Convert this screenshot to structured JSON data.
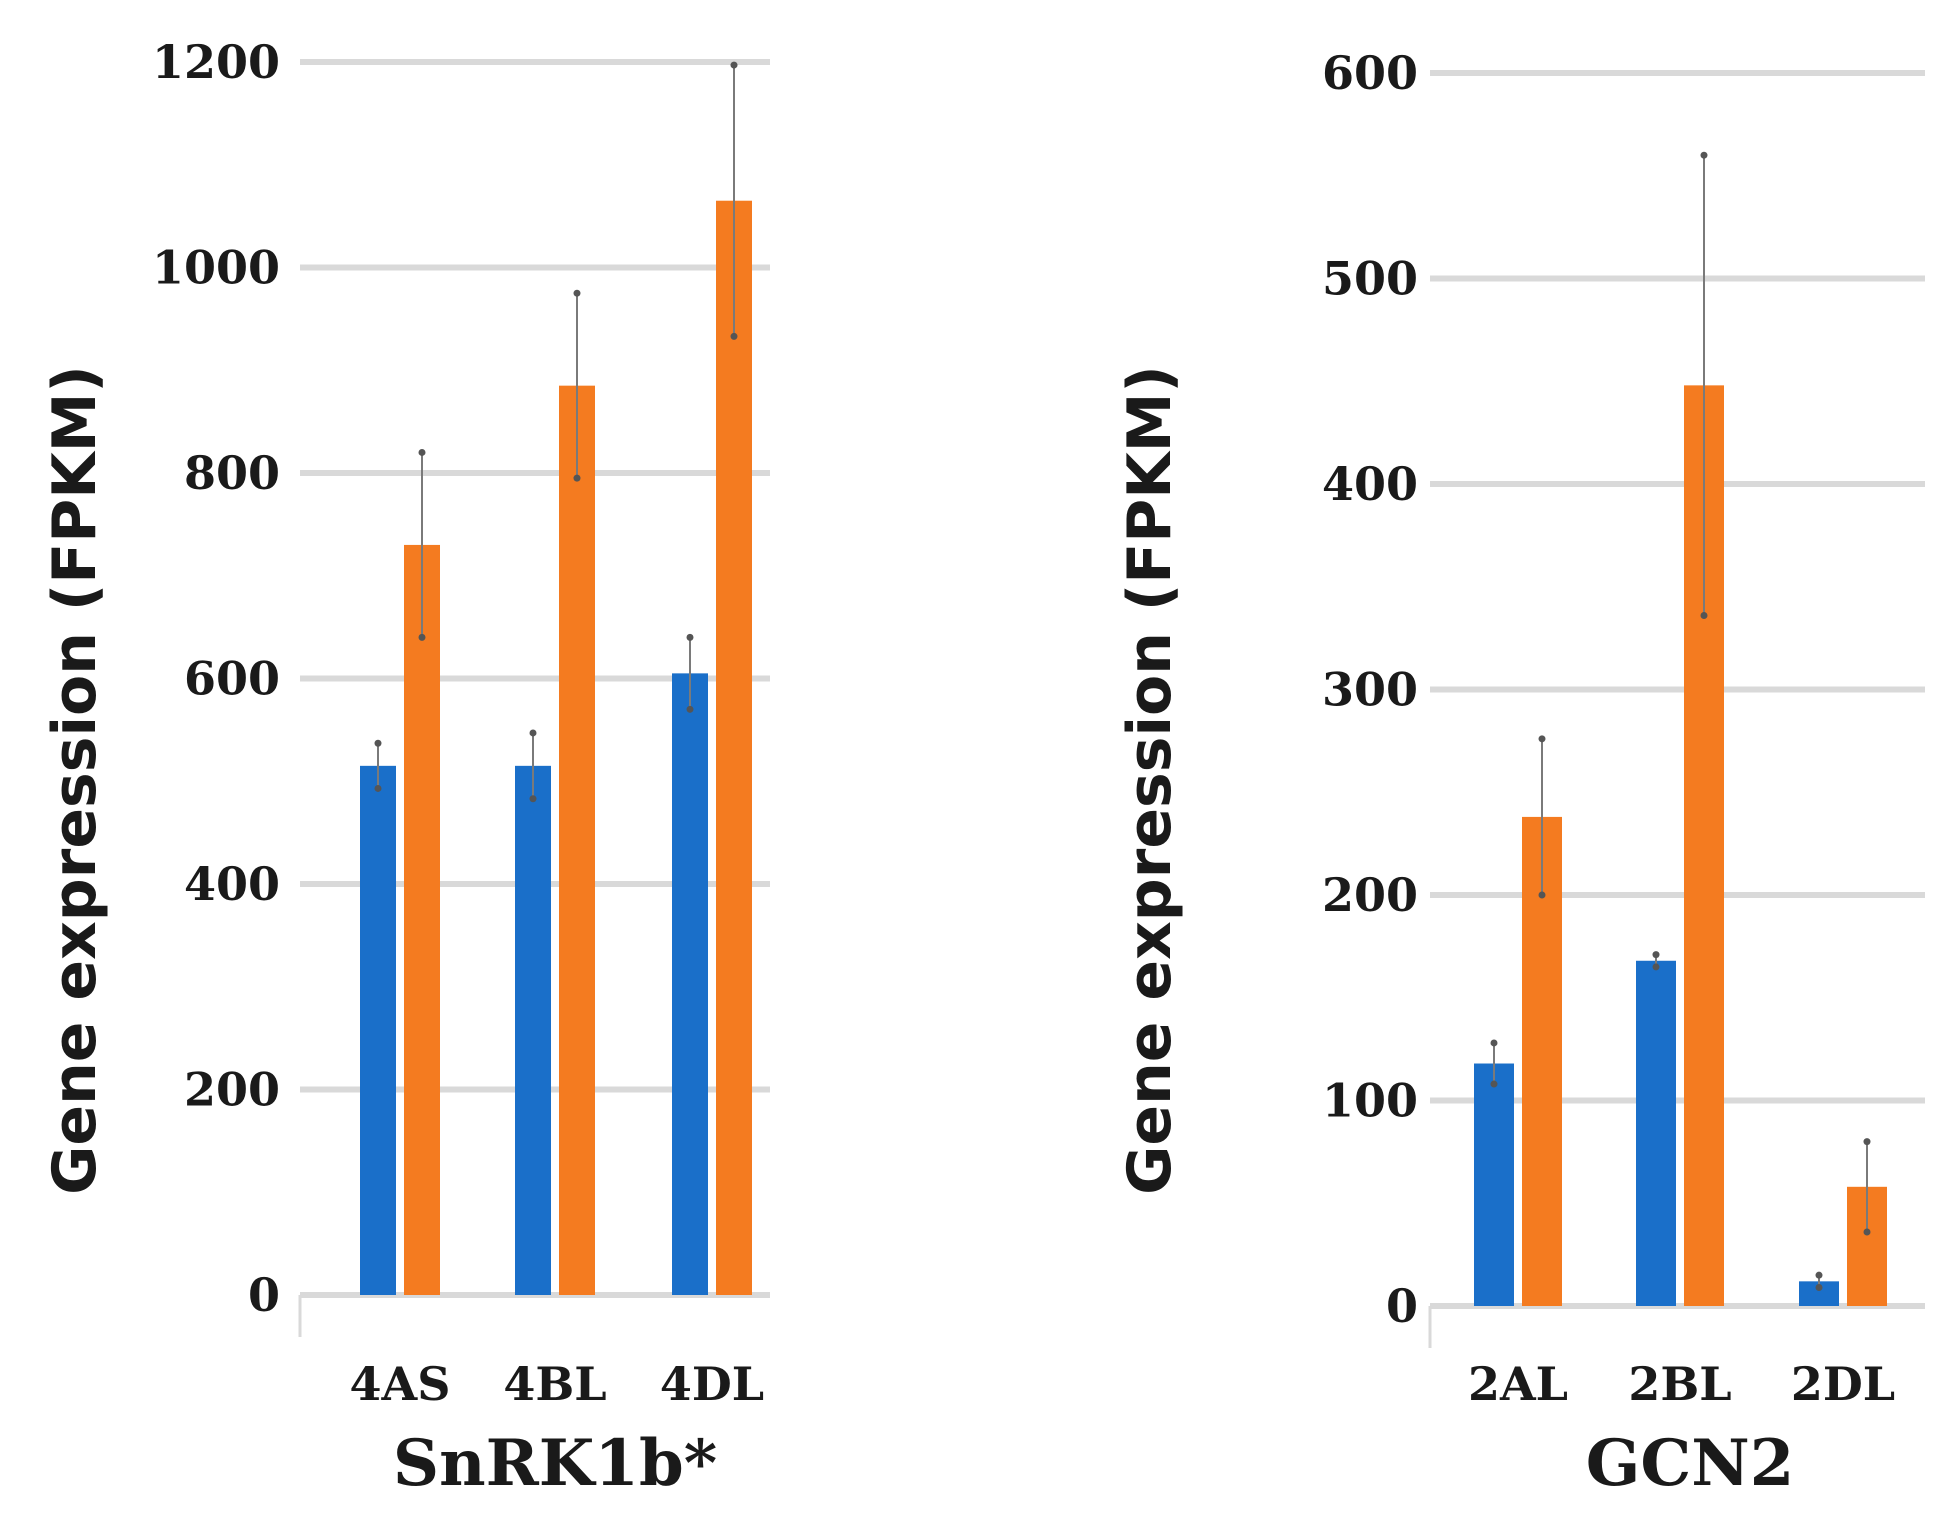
{
  "colors": {
    "series_blue": "#1a6fc9",
    "series_orange": "#f47b20",
    "grid": "#d9d9d9",
    "errorbar": "#7a7a7a"
  },
  "chart_data": [
    {
      "type": "bar",
      "title": "SnRK1b*",
      "ylabel": "Gene expression (FPKM)",
      "xlabel": "",
      "ylim": [
        0,
        1200
      ],
      "yticks": [
        "0",
        "200",
        "400",
        "600",
        "800",
        "1000",
        "1200"
      ],
      "grid": true,
      "categories": [
        "4AS",
        "4BL",
        "4DL"
      ],
      "series": [
        {
          "name": "blue",
          "color": "#1a6fc9",
          "values": [
            515,
            515,
            605
          ],
          "errors": [
            22,
            32,
            35
          ]
        },
        {
          "name": "orange",
          "color": "#f47b20",
          "values": [
            730,
            885,
            1065
          ],
          "errors": [
            90,
            90,
            132
          ]
        }
      ]
    },
    {
      "type": "bar",
      "title": "GCN2",
      "ylabel": "Gene expression (FPKM)",
      "xlabel": "",
      "ylim": [
        0,
        600
      ],
      "yticks": [
        "0",
        "100",
        "200",
        "300",
        "400",
        "500",
        "600"
      ],
      "grid": true,
      "categories": [
        "2AL",
        "2BL",
        "2DL"
      ],
      "series": [
        {
          "name": "blue",
          "color": "#1a6fc9",
          "values": [
            118,
            168,
            12
          ],
          "errors": [
            10,
            3,
            3
          ]
        },
        {
          "name": "orange",
          "color": "#f47b20",
          "values": [
            238,
            448,
            58
          ],
          "errors": [
            38,
            112,
            22
          ]
        }
      ]
    }
  ]
}
